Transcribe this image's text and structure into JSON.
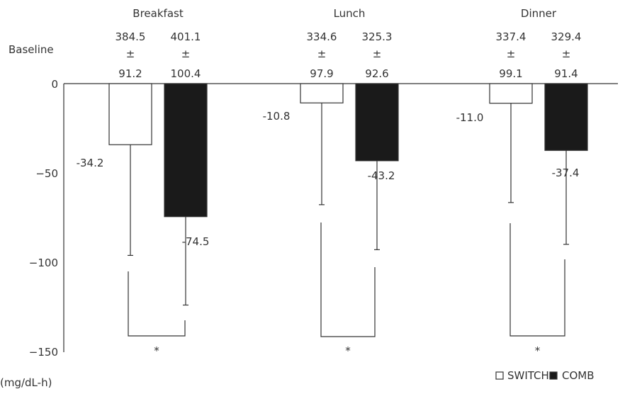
{
  "chart_data": {
    "type": "bar",
    "categories": [
      "Breakfast",
      "Lunch",
      "Dinner"
    ],
    "series": [
      {
        "name": "SWITCH",
        "values": [
          -34.2,
          -10.8,
          -11.0
        ],
        "error": [
          62.0,
          57.0,
          55.6
        ],
        "baseline_mean": [
          "384.5",
          "334.6",
          "337.4"
        ],
        "baseline_sd": [
          "91.2",
          "97.9",
          "99.1"
        ],
        "color": "#ffffff"
      },
      {
        "name": "COMB",
        "values": [
          -74.5,
          -43.2,
          -37.4
        ],
        "error": [
          49.5,
          49.8,
          52.6
        ],
        "baseline_mean": [
          "401.1",
          "325.3",
          "329.4"
        ],
        "baseline_sd": [
          "100.4",
          "92.6",
          "91.4"
        ],
        "color": "#1a1a1a"
      }
    ],
    "value_labels": [
      [
        "-34.2",
        "-74.5"
      ],
      [
        "-10.8",
        "-43.2"
      ],
      [
        "-11.0",
        "-37.4"
      ]
    ],
    "baseline_label": "Baseline",
    "pm_symbol": "±",
    "ylim": [
      -150,
      0
    ],
    "yticks": [
      0,
      -50,
      -100,
      -150
    ],
    "ytick_labels": [
      "0",
      "−50",
      "−100",
      "−150"
    ],
    "ylabel": "(mg/dL-h)",
    "significance_marker": "*",
    "legend_position": "bottom-right",
    "grid": false
  }
}
